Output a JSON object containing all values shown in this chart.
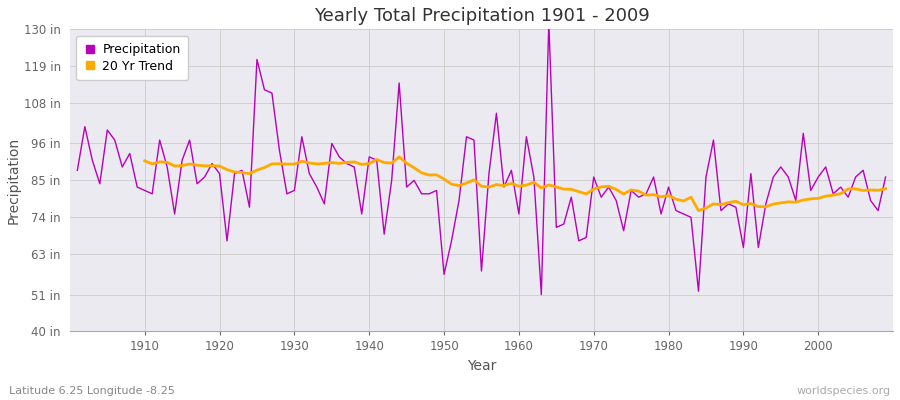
{
  "title": "Yearly Total Precipitation 1901 - 2009",
  "xlabel": "Year",
  "ylabel": "Precipitation",
  "subtitle": "Latitude 6.25 Longitude -8.25",
  "watermark": "worldspecies.org",
  "ylim": [
    40,
    130
  ],
  "yticks": [
    40,
    51,
    63,
    74,
    85,
    96,
    108,
    119,
    130
  ],
  "ytick_labels": [
    "40 in",
    "51 in",
    "63 in",
    "74 in",
    "85 in",
    "96 in",
    "108 in",
    "119 in",
    "130 in"
  ],
  "xlim": [
    1900,
    2010
  ],
  "xticks": [
    1910,
    1920,
    1930,
    1940,
    1950,
    1960,
    1970,
    1980,
    1990,
    2000
  ],
  "precip_color": "#bb00bb",
  "trend_color": "#ffaa00",
  "fig_bg_color": "#ffffff",
  "plot_bg_color": "#eaeaf0",
  "legend_bg": "#ffffff",
  "years": [
    1901,
    1902,
    1903,
    1904,
    1905,
    1906,
    1907,
    1908,
    1909,
    1910,
    1911,
    1912,
    1913,
    1914,
    1915,
    1916,
    1917,
    1918,
    1919,
    1920,
    1921,
    1922,
    1923,
    1924,
    1925,
    1926,
    1927,
    1928,
    1929,
    1930,
    1931,
    1932,
    1933,
    1934,
    1935,
    1936,
    1937,
    1938,
    1939,
    1940,
    1941,
    1942,
    1943,
    1944,
    1945,
    1946,
    1947,
    1948,
    1949,
    1950,
    1951,
    1952,
    1953,
    1954,
    1955,
    1956,
    1957,
    1958,
    1959,
    1960,
    1961,
    1962,
    1963,
    1964,
    1965,
    1966,
    1967,
    1968,
    1969,
    1970,
    1971,
    1972,
    1973,
    1974,
    1975,
    1976,
    1977,
    1978,
    1979,
    1980,
    1981,
    1982,
    1983,
    1984,
    1985,
    1986,
    1987,
    1988,
    1989,
    1990,
    1991,
    1992,
    1993,
    1994,
    1995,
    1996,
    1997,
    1998,
    1999,
    2000,
    2001,
    2002,
    2003,
    2004,
    2005,
    2006,
    2007,
    2008,
    2009
  ],
  "precipitation": [
    88,
    101,
    91,
    84,
    100,
    97,
    89,
    93,
    83,
    82,
    81,
    97,
    89,
    75,
    91,
    97,
    84,
    86,
    90,
    87,
    67,
    87,
    88,
    77,
    121,
    112,
    111,
    94,
    81,
    82,
    98,
    87,
    83,
    78,
    96,
    92,
    90,
    89,
    75,
    92,
    91,
    69,
    85,
    114,
    83,
    85,
    81,
    81,
    82,
    57,
    67,
    79,
    98,
    97,
    58,
    87,
    105,
    83,
    88,
    75,
    98,
    86,
    51,
    132,
    71,
    72,
    80,
    67,
    68,
    86,
    80,
    83,
    79,
    70,
    82,
    80,
    81,
    86,
    75,
    83,
    76,
    75,
    74,
    52,
    86,
    97,
    76,
    78,
    77,
    65,
    87,
    65,
    78,
    86,
    89,
    86,
    79,
    99,
    82,
    86,
    89,
    81,
    83,
    80,
    86,
    88,
    79,
    76,
    86
  ]
}
